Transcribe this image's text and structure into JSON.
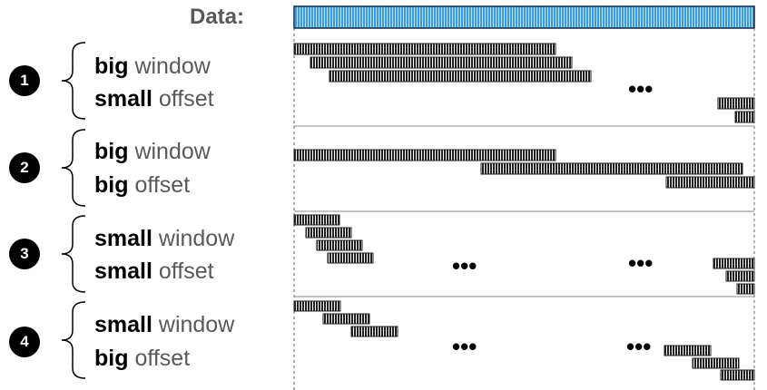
{
  "data_label": "Data:",
  "rows": [
    {
      "number": "1",
      "line1_bold": "big",
      "line1_rest": " window",
      "line2_bold": "small",
      "line2_rest": " offset"
    },
    {
      "number": "2",
      "line1_bold": "big",
      "line1_rest": " window",
      "line2_bold": "big",
      "line2_rest": " offset"
    },
    {
      "number": "3",
      "line1_bold": "small",
      "line1_rest": " window",
      "line2_bold": "small",
      "line2_rest": " offset"
    },
    {
      "number": "4",
      "line1_bold": "small",
      "line1_rest": " window",
      "line2_bold": "big",
      "line2_rest": " offset"
    }
  ],
  "ellipsis": "•••",
  "colors": {
    "data_bar": "#2e8fd6",
    "window_bar": "#222222"
  }
}
